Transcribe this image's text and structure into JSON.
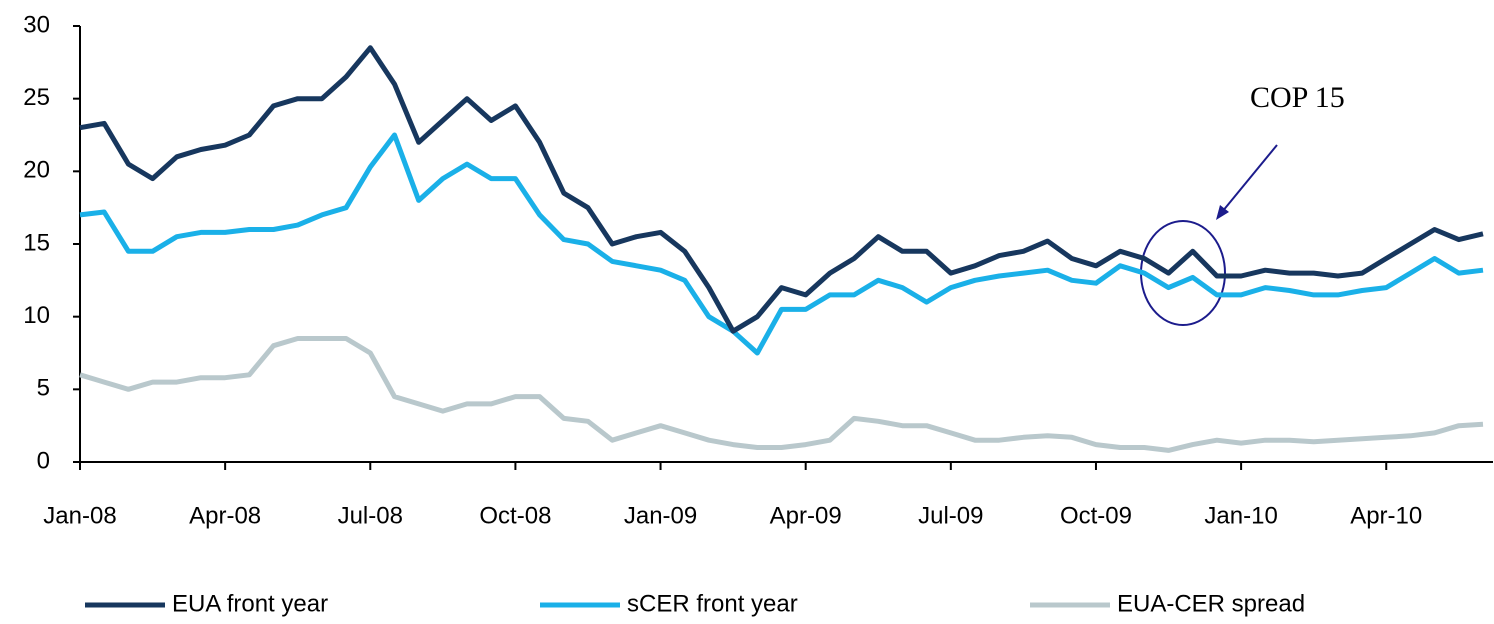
{
  "chart_data": {
    "type": "line",
    "annotation": "COP 15",
    "categories": [
      "Jan-08",
      null,
      null,
      null,
      null,
      null,
      "Apr-08",
      null,
      null,
      null,
      null,
      null,
      "Jul-08",
      null,
      null,
      null,
      null,
      null,
      "Oct-08",
      null,
      null,
      null,
      null,
      null,
      "Jan-09",
      null,
      null,
      null,
      null,
      null,
      "Apr-09",
      null,
      null,
      null,
      null,
      null,
      "Jul-09",
      null,
      null,
      null,
      null,
      null,
      "Oct-09",
      null,
      null,
      null,
      null,
      null,
      "Jan-10",
      null,
      null,
      null,
      null,
      null,
      "Apr-10",
      null,
      null,
      null,
      null
    ],
    "series": [
      {
        "name": "EUA front year",
        "color": "#17375e",
        "values": [
          23,
          23.3,
          20.5,
          19.5,
          21,
          21.5,
          21.8,
          22.5,
          24.5,
          25,
          25,
          26.5,
          28.5,
          26,
          22,
          23.5,
          25,
          23.5,
          24.5,
          22,
          18.5,
          17.5,
          15,
          15.5,
          15.8,
          14.5,
          12,
          9,
          10,
          12,
          11.5,
          13,
          14,
          15.5,
          14.5,
          14.5,
          13,
          13.5,
          14.2,
          14.5,
          15.2,
          14,
          13.5,
          14.5,
          14,
          13,
          14.5,
          12.8,
          12.8,
          13.2,
          13,
          13,
          12.8,
          13,
          14,
          15,
          16,
          15.3,
          15.7
        ]
      },
      {
        "name": "sCER front year",
        "color": "#1ab0e8",
        "values": [
          17,
          17.2,
          14.5,
          14.5,
          15.5,
          15.8,
          15.8,
          16,
          16,
          16.3,
          17,
          17.5,
          20.3,
          22.5,
          18,
          19.5,
          20.5,
          19.5,
          19.5,
          17,
          15.3,
          15,
          13.8,
          13.5,
          13.2,
          12.5,
          10,
          9,
          7.5,
          10.5,
          10.5,
          11.5,
          11.5,
          12.5,
          12,
          11,
          12,
          12.5,
          12.8,
          13,
          13.2,
          12.5,
          12.3,
          13.5,
          13,
          12,
          12.7,
          11.5,
          11.5,
          12,
          11.8,
          11.5,
          11.5,
          11.8,
          12,
          13,
          14,
          13,
          13.2
        ]
      },
      {
        "name": "EUA-CER spread",
        "color": "#b9c8cc",
        "values": [
          6,
          5.5,
          5,
          5.5,
          5.5,
          5.8,
          5.8,
          6,
          8,
          8.5,
          8.5,
          8.5,
          7.5,
          4.5,
          4,
          3.5,
          4,
          4,
          4.5,
          4.5,
          3,
          2.8,
          1.5,
          2,
          2.5,
          2,
          1.5,
          1.2,
          1,
          1,
          1.2,
          1.5,
          3,
          2.8,
          2.5,
          2.5,
          2,
          1.5,
          1.5,
          1.7,
          1.8,
          1.7,
          1.2,
          1,
          1,
          0.8,
          1.2,
          1.5,
          1.3,
          1.5,
          1.5,
          1.4,
          1.5,
          1.6,
          1.7,
          1.8,
          2,
          2.5,
          2.6
        ]
      }
    ],
    "ylim": [
      0,
      30
    ],
    "yticks": [
      0,
      5,
      10,
      15,
      20,
      25,
      30
    ],
    "grid": false,
    "legend": "bottom"
  }
}
